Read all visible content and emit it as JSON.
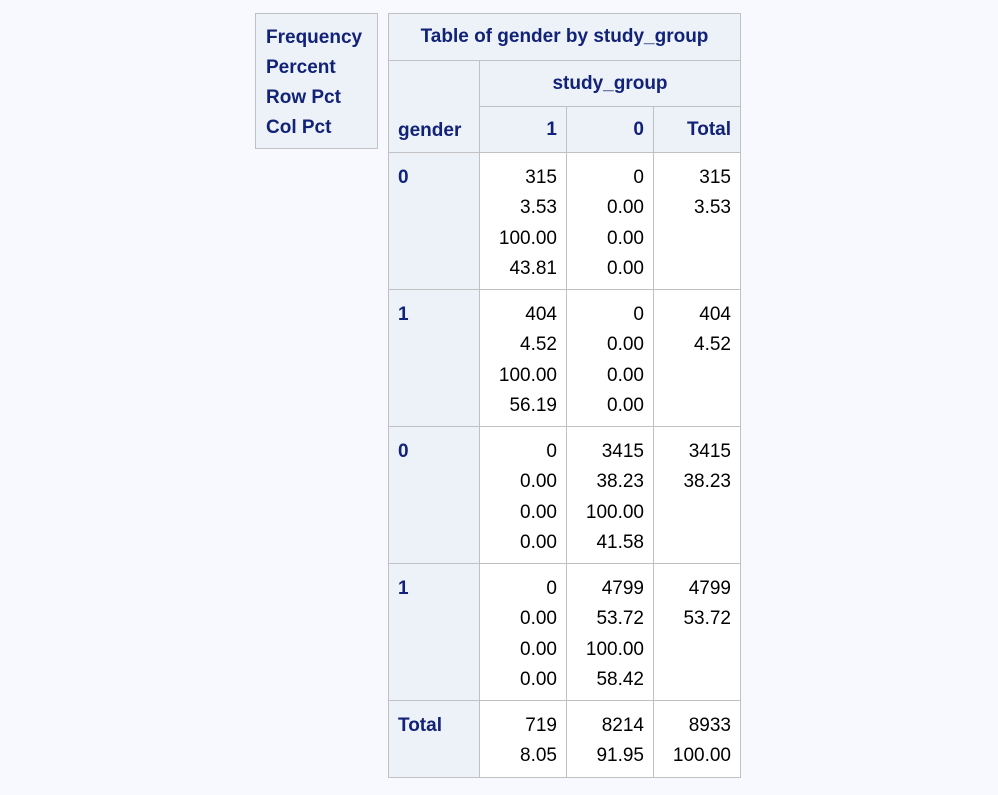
{
  "legend": [
    "Frequency",
    "Percent",
    "Row Pct",
    "Col Pct"
  ],
  "table": {
    "title": "Table of gender by study_group",
    "col_var": "study_group",
    "row_var": "gender",
    "columns": [
      "1",
      "0",
      "Total"
    ],
    "rows": [
      {
        "label": "0",
        "cells": [
          [
            "315",
            "3.53",
            "100.00",
            "43.81"
          ],
          [
            "0",
            "0.00",
            "0.00",
            "0.00"
          ],
          [
            "315",
            "3.53"
          ]
        ]
      },
      {
        "label": "1",
        "cells": [
          [
            "404",
            "4.52",
            "100.00",
            "56.19"
          ],
          [
            "0",
            "0.00",
            "0.00",
            "0.00"
          ],
          [
            "404",
            "4.52"
          ]
        ]
      },
      {
        "label": "0",
        "cells": [
          [
            "0",
            "0.00",
            "0.00",
            "0.00"
          ],
          [
            "3415",
            "38.23",
            "100.00",
            "41.58"
          ],
          [
            "3415",
            "38.23"
          ]
        ]
      },
      {
        "label": "1",
        "cells": [
          [
            "0",
            "0.00",
            "0.00",
            "0.00"
          ],
          [
            "4799",
            "53.72",
            "100.00",
            "58.42"
          ],
          [
            "4799",
            "53.72"
          ]
        ]
      },
      {
        "label": "Total",
        "cells": [
          [
            "719",
            "8.05"
          ],
          [
            "8214",
            "91.95"
          ],
          [
            "8933",
            "100.00"
          ]
        ]
      }
    ]
  },
  "colors": {
    "header_bg": "#edf2f9",
    "header_text": "#112277",
    "border": "#c1c1c1",
    "page_bg": "#f8f9fe"
  }
}
